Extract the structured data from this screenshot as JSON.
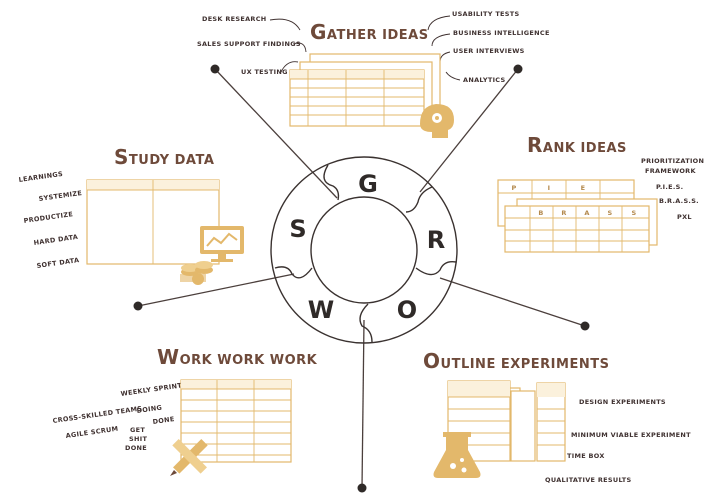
{
  "wheel": {
    "letters": {
      "g": "G",
      "r": "R",
      "o": "O",
      "w": "W",
      "s": "S"
    }
  },
  "sections": {
    "gather": {
      "title_cap": "G",
      "title_rest": "ATHER IDEAS",
      "left_items": [
        "DESK RESEARCH",
        "SALES SUPPORT FINDINGS",
        "UX TESTING"
      ],
      "right_items": [
        "USABILITY TESTS",
        "BUSINESS INTELLIGENCE",
        "USER INTERVIEWS",
        "ANALYTICS"
      ]
    },
    "rank": {
      "title_cap": "R",
      "title_rest": "ANK IDEAS",
      "items": [
        "PRIORITIZATION",
        "FRAMEWORK",
        "P.I.E.S.",
        "B.R.A.S.S.",
        "PXL"
      ],
      "grid_labels": [
        "P",
        "I",
        "E",
        "B",
        "R",
        "A",
        "S",
        "S"
      ]
    },
    "study": {
      "title_cap": "S",
      "title_rest": "TUDY DATA",
      "items": [
        "LEARNINGS",
        "SYSTEMIZE",
        "PRODUCTIZE",
        "HARD DATA",
        "SOFT DATA"
      ]
    },
    "work": {
      "title_cap": "W",
      "title_rest": "ORK WORK WORK",
      "items": [
        "WEEKLY SPRINT",
        "CROSS-SKILLED TEAMS",
        "DOING",
        "DONE",
        "AGILE SCRUM",
        "GET",
        "SHIT",
        "DONE"
      ]
    },
    "outline": {
      "title_cap": "O",
      "title_rest": "UTLINE EXPERIMENTS",
      "items": [
        "DESIGN EXPERIMENTS",
        "MINIMUM VIABLE EXPERIMENT",
        "TIME BOX",
        "QUALITATIVE RESULTS"
      ]
    }
  },
  "colors": {
    "title": "#6e4a3a",
    "table_stroke": "#e3b86b",
    "table_fill": "#fbf1dc",
    "line": "#3a3230"
  },
  "icons": [
    "brain-gear-icon",
    "monitor-chart-icon",
    "coins-chart-icon",
    "pencil-ruler-icon",
    "flask-icon",
    "arrow-icon"
  ]
}
